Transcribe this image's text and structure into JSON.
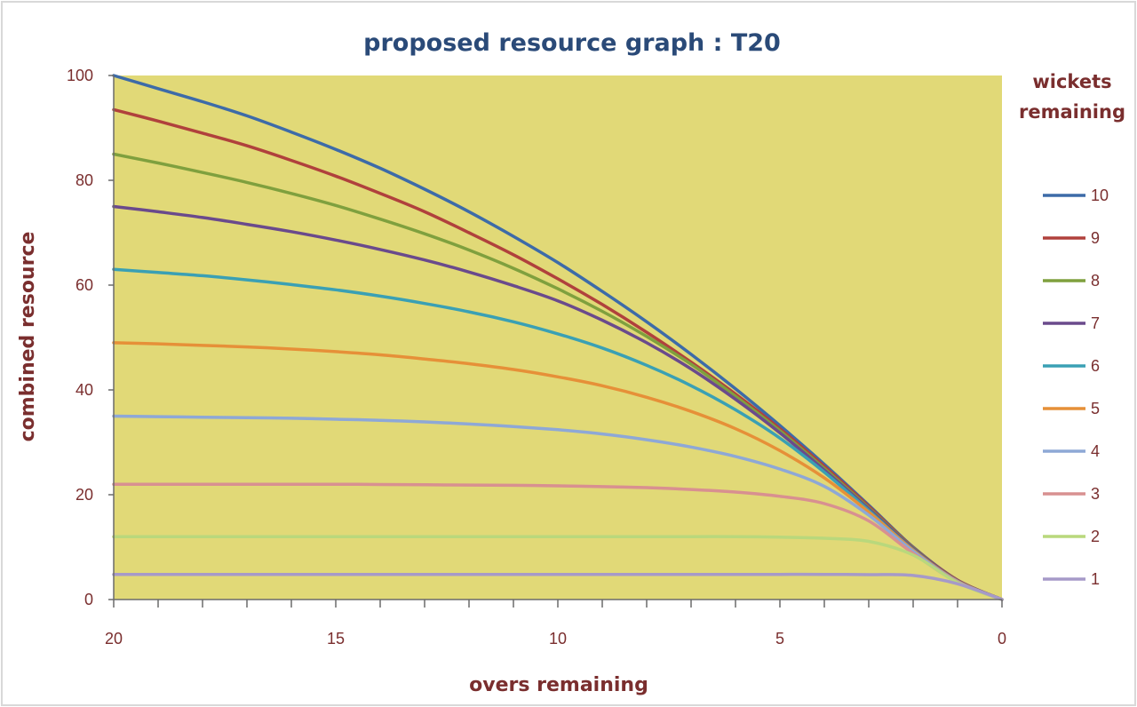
{
  "chart_data": {
    "type": "line",
    "title": "proposed resource graph : T20",
    "xlabel": "overs remaining",
    "ylabel": "combined resource",
    "legend_title": [
      "wickets",
      "remaining"
    ],
    "legend_position": "right",
    "x_reversed": true,
    "xlim": [
      20,
      0
    ],
    "ylim": [
      0,
      100
    ],
    "x_ticks": [
      "20",
      "15",
      "10",
      "5",
      "0"
    ],
    "y_ticks": [
      "0",
      "20",
      "40",
      "60",
      "80",
      "100"
    ],
    "grid": false,
    "x": [
      20,
      19,
      18,
      17,
      16,
      15,
      14,
      13,
      12,
      11,
      10,
      9,
      8,
      7,
      6,
      5,
      4,
      3,
      2,
      1,
      0
    ],
    "series": [
      {
        "name": "10",
        "color": "#3d6ba8",
        "values": [
          100,
          97.5,
          95,
          92.3,
          89.2,
          85.9,
          82.3,
          78.3,
          74,
          69.3,
          64.3,
          58.8,
          53,
          46.8,
          40.2,
          33.2,
          25.8,
          18,
          10,
          3.7,
          0
        ]
      },
      {
        "name": "9",
        "color": "#b0413c",
        "values": [
          93.5,
          91.3,
          89,
          86.6,
          83.8,
          80.8,
          77.5,
          74,
          70,
          65.8,
          61.2,
          56.3,
          51,
          45.3,
          39.2,
          32.6,
          25.4,
          17.8,
          9.9,
          3.7,
          0
        ]
      },
      {
        "name": "8",
        "color": "#7fa03e",
        "values": [
          85,
          83.3,
          81.5,
          79.6,
          77.5,
          75.2,
          72.6,
          69.8,
          66.7,
          63.2,
          59.3,
          55,
          50.2,
          44.9,
          38.8,
          32.2,
          25,
          17.5,
          9.8,
          3.6,
          0
        ]
      },
      {
        "name": "7",
        "color": "#6a4a8c",
        "values": [
          75,
          74,
          72.9,
          71.6,
          70.2,
          68.6,
          66.8,
          64.8,
          62.5,
          59.9,
          57,
          53.3,
          49,
          44,
          38.2,
          31.8,
          24.7,
          17.3,
          9.7,
          3.6,
          0
        ]
      },
      {
        "name": "6",
        "color": "#3aa0b4",
        "values": [
          63,
          62.4,
          61.8,
          61,
          60.1,
          59.1,
          57.9,
          56.5,
          54.9,
          53,
          50.7,
          48,
          44.7,
          40.8,
          36.2,
          30.8,
          24.3,
          17,
          9.5,
          3.5,
          0
        ]
      },
      {
        "name": "5",
        "color": "#e69038",
        "values": [
          49,
          48.8,
          48.5,
          48.2,
          47.8,
          47.3,
          46.7,
          45.9,
          45,
          43.9,
          42.5,
          40.8,
          38.6,
          35.9,
          32.6,
          28.4,
          23.2,
          16.7,
          9.4,
          3.5,
          0
        ]
      },
      {
        "name": "4",
        "color": "#8ea8d6",
        "values": [
          35,
          34.9,
          34.8,
          34.7,
          34.6,
          34.4,
          34.2,
          33.9,
          33.5,
          33,
          32.4,
          31.6,
          30.5,
          29.1,
          27.3,
          24.9,
          21.6,
          16.1,
          9.2,
          3.4,
          0
        ]
      },
      {
        "name": "3",
        "color": "#d89090",
        "values": [
          22,
          22,
          22,
          22,
          22,
          22,
          21.95,
          21.9,
          21.85,
          21.8,
          21.7,
          21.55,
          21.35,
          21,
          20.5,
          19.7,
          18.3,
          15,
          8.8,
          3.3,
          0
        ]
      },
      {
        "name": "2",
        "color": "#b9d87c",
        "values": [
          12,
          12,
          12,
          12,
          12,
          12,
          12,
          12,
          12,
          12,
          12,
          12,
          12,
          12,
          12,
          11.9,
          11.7,
          11.1,
          8.5,
          3.2,
          0
        ]
      },
      {
        "name": "1",
        "color": "#a69ac8",
        "values": [
          4.8,
          4.8,
          4.8,
          4.8,
          4.8,
          4.8,
          4.8,
          4.8,
          4.8,
          4.8,
          4.8,
          4.8,
          4.8,
          4.8,
          4.8,
          4.8,
          4.8,
          4.75,
          4.6,
          3,
          0
        ]
      }
    ]
  },
  "colors": {
    "plot_background": "#e1d977",
    "page_background": "#ffffff",
    "title": "#2a4a78",
    "axis_text": "#7a2e2e",
    "axis_line": "#6b6b6b"
  }
}
